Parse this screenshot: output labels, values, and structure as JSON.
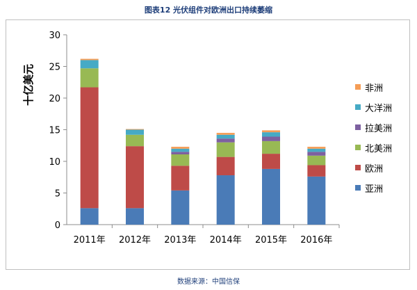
{
  "header": {
    "title": "图表12  光伏组件对欧洲出口持续萎缩"
  },
  "footer": {
    "source": "数据来源：中国信保"
  },
  "chart_data": {
    "type": "bar",
    "stacked": true,
    "title": "图表12  光伏组件对欧洲出口持续萎缩",
    "xlabel": "",
    "ylabel": "十亿美元",
    "ylim": [
      0,
      30
    ],
    "yticks": [
      0,
      5,
      10,
      15,
      20,
      25,
      30
    ],
    "grid": false,
    "legend_position": "right",
    "categories": [
      "2011年",
      "2012年",
      "2013年",
      "2014年",
      "2015年",
      "2016年"
    ],
    "series": [
      {
        "name": "亚洲",
        "color": "#4a7bb7",
        "values": [
          2.6,
          2.6,
          5.4,
          7.8,
          8.8,
          7.6
        ]
      },
      {
        "name": "欧洲",
        "color": "#be4b48",
        "values": [
          19.1,
          9.8,
          3.9,
          2.9,
          2.4,
          1.8
        ]
      },
      {
        "name": "北美洲",
        "color": "#98b954",
        "values": [
          3.0,
          1.8,
          1.8,
          2.3,
          2.0,
          1.5
        ]
      },
      {
        "name": "拉美洲",
        "color": "#7d60a0",
        "values": [
          0.0,
          0.0,
          0.4,
          0.6,
          0.7,
          0.6
        ]
      },
      {
        "name": "大洋洲",
        "color": "#46aac5",
        "values": [
          1.3,
          0.8,
          0.5,
          0.6,
          0.7,
          0.5
        ]
      },
      {
        "name": "非洲",
        "color": "#f59d56",
        "values": [
          0.2,
          0.1,
          0.3,
          0.3,
          0.3,
          0.3
        ]
      }
    ]
  }
}
